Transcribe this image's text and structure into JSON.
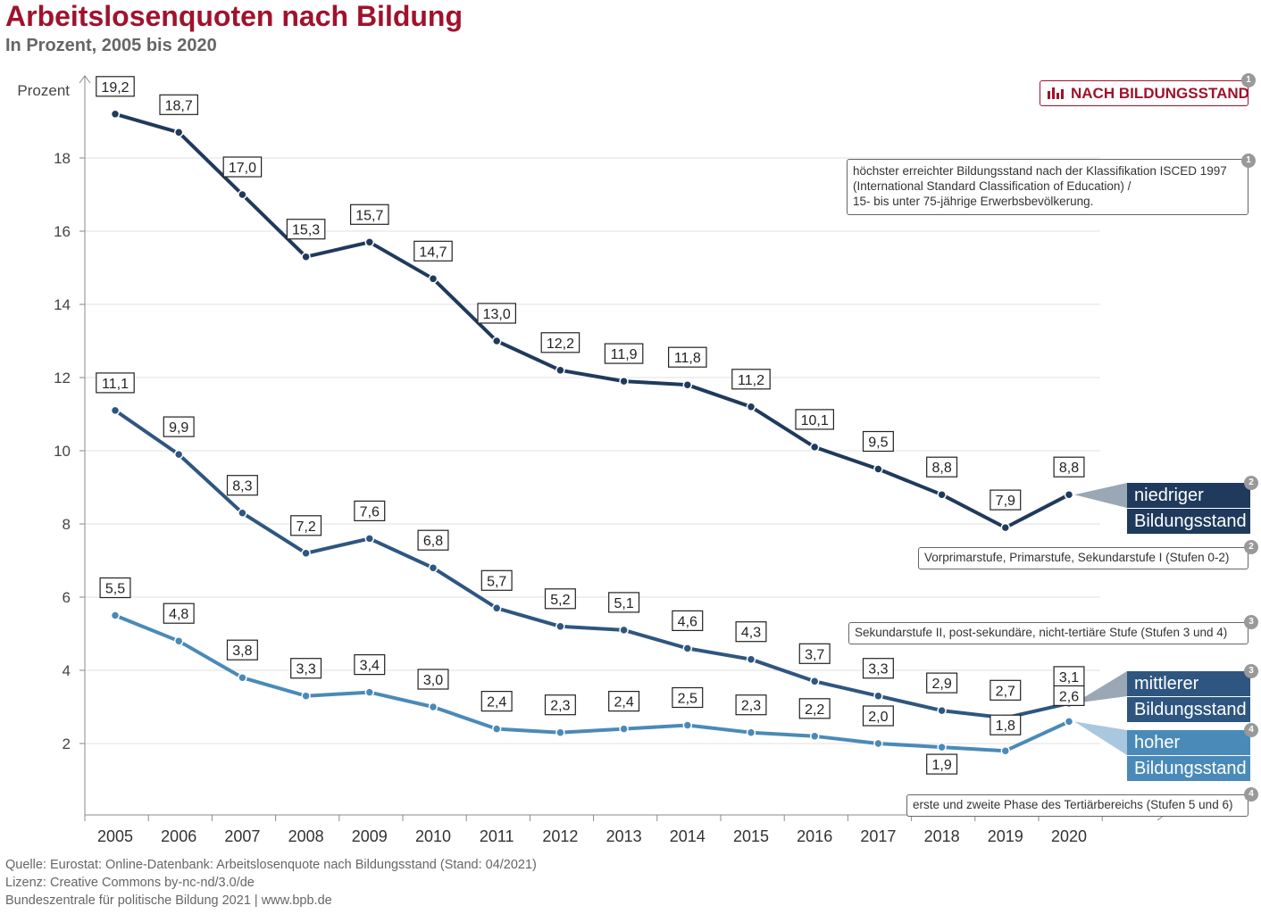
{
  "header": {
    "title": "Arbeitslosenquoten nach Bildung",
    "subtitle": "In Prozent, 2005 bis 2020"
  },
  "badge": {
    "label": "NACH BILDUNGSSTAND",
    "number": "1",
    "icon": "bar-chart-icon"
  },
  "notes": {
    "n1": {
      "number": "1",
      "lines": [
        "höchster erreichter Bildungsstand nach der Klassifikation ISCED 1997",
        "(International Standard Classification of Education) /",
        "15- bis unter 75-jährige Erwerbsbevölkerung."
      ]
    },
    "n2": {
      "number": "2",
      "text": "Vorprimarstufe, Primarstufe, Sekundarstufe I (Stufen 0-2)"
    },
    "n3": {
      "number": "3",
      "text": "Sekundarstufe II, post-sekundäre, nicht-tertiäre Stufe (Stufen 3 und 4)"
    },
    "n4": {
      "number": "4",
      "text": "erste und zweite Phase des Tertiärbereichs (Stufen 5 und 6)"
    }
  },
  "series_labels": {
    "low": {
      "line1": "niedriger",
      "line2": "Bildungsstand",
      "number": "2"
    },
    "mid": {
      "line1": "mittlerer",
      "line2": "Bildungsstand",
      "number": "3"
    },
    "high": {
      "line1": "hoher",
      "line2": "Bildungsstand",
      "number": "4"
    }
  },
  "footer": {
    "source": "Quelle: Eurostat: Online-Datenbank: Arbeitslosenquote nach Bildungsstand (Stand: 04/2021)",
    "license": "Lizenz: Creative Commons by-nc-nd/3.0/de",
    "publisher": "Bundeszentrale  für  politische  Bildung  2021  |  www.bpb.de"
  },
  "colors": {
    "title": "#a0122c",
    "low": "#1f3a5c",
    "mid": "#2e5680",
    "high": "#4a8ab8"
  },
  "chart_data": {
    "type": "line",
    "ylabel": "Prozent",
    "xlabel": "",
    "ylim": [
      0,
      20
    ],
    "yticks": [
      2,
      4,
      6,
      8,
      10,
      12,
      14,
      16,
      18
    ],
    "grid": true,
    "x": [
      "2005",
      "2006",
      "2007",
      "2008",
      "2009",
      "2010",
      "2011",
      "2012",
      "2013",
      "2014",
      "2015",
      "2016",
      "2017",
      "2018",
      "2019",
      "2020"
    ],
    "series": [
      {
        "key": "low",
        "values": [
          19.2,
          18.7,
          17.0,
          15.3,
          15.7,
          14.7,
          13.0,
          12.2,
          11.9,
          11.8,
          11.2,
          10.1,
          9.5,
          8.8,
          7.9,
          8.8
        ],
        "labels": [
          "19,2",
          "18,7",
          "17,0",
          "15,3",
          "15,7",
          "14,7",
          "13,0",
          "12,2",
          "11,9",
          "11,8",
          "11,2",
          "10,1",
          "9,5",
          "8,8",
          "7,9",
          "8,8"
        ]
      },
      {
        "key": "mid",
        "values": [
          11.1,
          9.9,
          8.3,
          7.2,
          7.6,
          6.8,
          5.7,
          5.2,
          5.1,
          4.6,
          4.3,
          3.7,
          3.3,
          2.9,
          2.7,
          3.1
        ],
        "labels": [
          "11,1",
          "9,9",
          "8,3",
          "7,2",
          "7,6",
          "6,8",
          "5,7",
          "5,2",
          "5,1",
          "4,6",
          "4,3",
          "3,7",
          "3,3",
          "2,9",
          "2,7",
          "3,1"
        ]
      },
      {
        "key": "high",
        "values": [
          5.5,
          4.8,
          3.8,
          3.3,
          3.4,
          3.0,
          2.4,
          2.3,
          2.4,
          2.5,
          2.3,
          2.2,
          2.0,
          1.9,
          1.8,
          2.6
        ],
        "labels": [
          "5,5",
          "4,8",
          "3,8",
          "3,3",
          "3,4",
          "3,0",
          "2,4",
          "2,3",
          "2,4",
          "2,5",
          "2,3",
          "2,2",
          "2,0",
          "1,9",
          "1,8",
          "2,6"
        ]
      }
    ]
  }
}
